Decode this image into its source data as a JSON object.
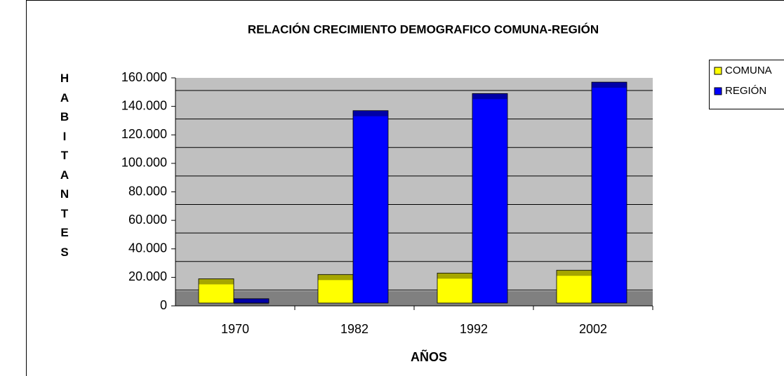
{
  "chart_data": {
    "type": "bar",
    "title": "RELACIÓN  CRECIMIENTO  DEMOGRAFICO  COMUNA-REGIÓN",
    "x_label": "AÑOS",
    "y_label": "HABITANTES",
    "categories": [
      "1970",
      "1982",
      "1992",
      "2002"
    ],
    "series": [
      {
        "name": "COMUNA",
        "color": "#ffff00",
        "values": [
          19000,
          22000,
          23000,
          25000
        ]
      },
      {
        "name": "REGIÓN",
        "color": "#0000ff",
        "values": [
          5000,
          137000,
          149000,
          157000
        ]
      }
    ],
    "ylim": [
      0,
      160000
    ],
    "yticks": [
      0,
      {
        "value": 20000,
        "label": "20.000"
      },
      {
        "value": 40000,
        "label": "40.000"
      },
      {
        "value": 60000,
        "label": "60.000"
      },
      {
        "value": 80000,
        "label": "80.000"
      },
      {
        "value": 100000,
        "label": "100.000"
      },
      {
        "value": 120000,
        "label": "120.000"
      },
      {
        "value": 140000,
        "label": "140.000"
      },
      {
        "value": 160000,
        "label": "160.000"
      }
    ],
    "grid": true,
    "legend": "right"
  }
}
